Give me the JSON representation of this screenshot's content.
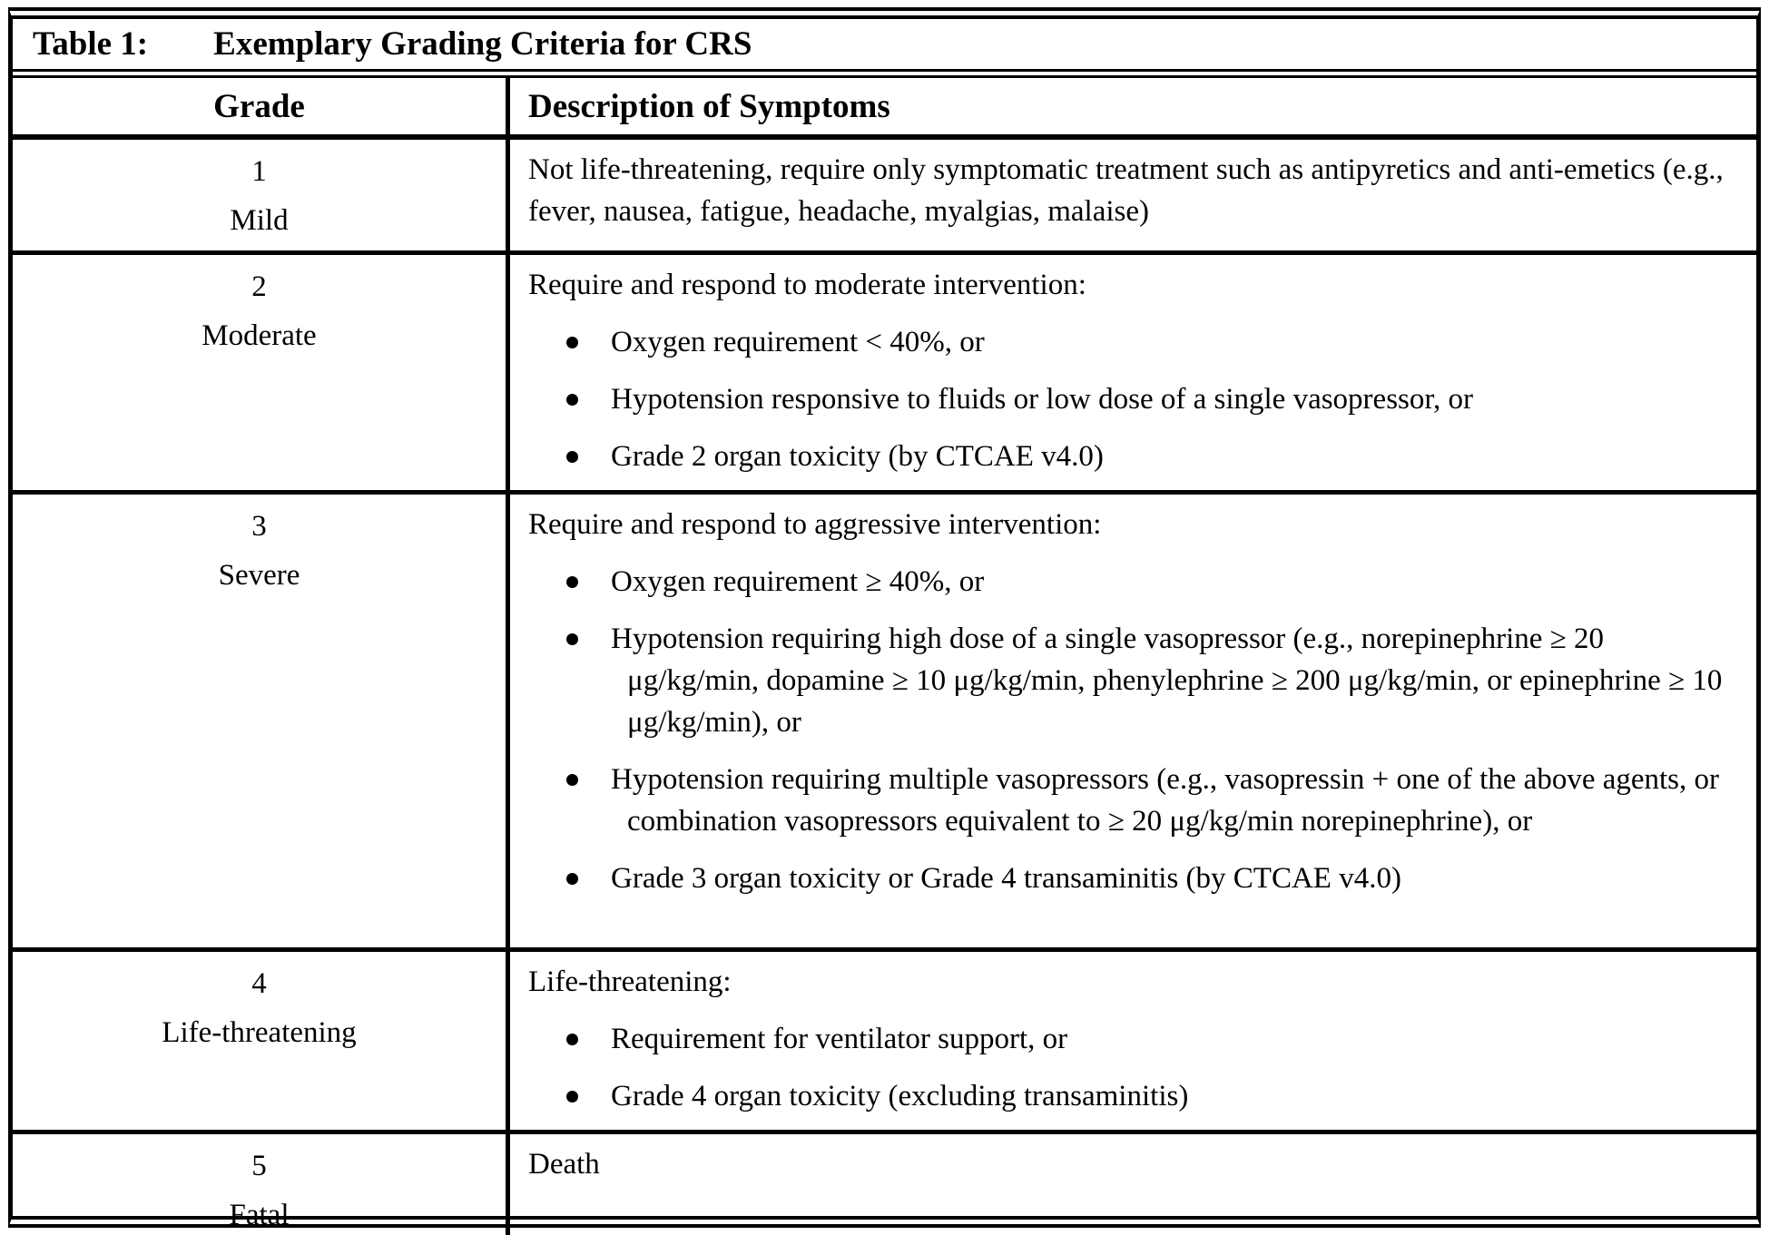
{
  "table": {
    "title_label": "Table 1:",
    "title_text": "Exemplary Grading Criteria for CRS",
    "columns": {
      "grade": "Grade",
      "description": "Description of Symptoms"
    },
    "rows": [
      {
        "grade_number": "1",
        "grade_label": "Mild",
        "intro": "Not life-threatening, require only symptomatic treatment such as antipyretics and anti-emetics (e.g., fever, nausea, fatigue, headache, myalgias, malaise)",
        "bullets": []
      },
      {
        "grade_number": "2",
        "grade_label": "Moderate",
        "intro": "Require and respond to moderate intervention:",
        "bullets": [
          "Oxygen requirement < 40%, or",
          "Hypotension responsive to fluids or low dose of a single vasopressor, or",
          "Grade 2 organ toxicity (by CTCAE v4.0)"
        ]
      },
      {
        "grade_number": "3",
        "grade_label": "Severe",
        "intro": "Require and respond to aggressive intervention:",
        "bullets": [
          "Oxygen requirement ≥ 40%, or",
          "Hypotension requiring high dose of a single vasopressor (e.g., norepinephrine ≥ 20 μg/kg/min, dopamine ≥ 10 μg/kg/min, phenylephrine ≥ 200 μg/kg/min, or epinephrine ≥ 10 μg/kg/min), or",
          "Hypotension requiring multiple vasopressors (e.g., vasopressin + one of the above agents, or combination vasopressors equivalent to ≥ 20 μg/kg/min norepinephrine), or",
          "Grade 3 organ toxicity or Grade 4 transaminitis (by CTCAE v4.0)"
        ]
      },
      {
        "grade_number": "4",
        "grade_label": "Life-threatening",
        "intro": "Life-threatening:",
        "bullets": [
          "Requirement for ventilator support, or",
          "Grade 4 organ toxicity (excluding transaminitis)"
        ]
      },
      {
        "grade_number": "5",
        "grade_label": "Fatal",
        "intro": "Death",
        "bullets": []
      }
    ]
  }
}
